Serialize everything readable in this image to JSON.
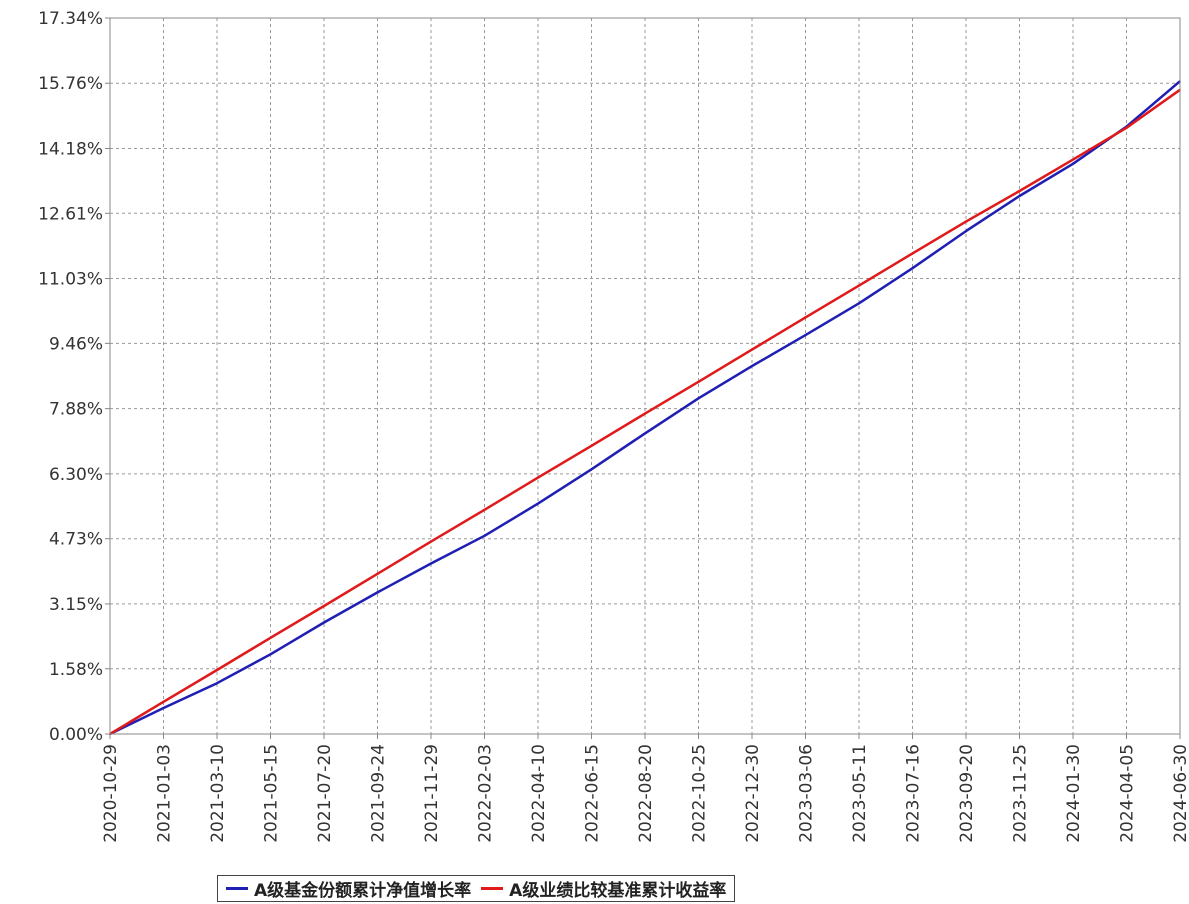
{
  "chart_data": {
    "type": "line",
    "title": "",
    "xlabel": "",
    "ylabel": "",
    "x": [
      "2020-10-29",
      "2021-01-03",
      "2021-03-10",
      "2021-05-15",
      "2021-07-20",
      "2021-09-24",
      "2021-11-29",
      "2022-02-03",
      "2022-04-10",
      "2022-06-15",
      "2022-08-20",
      "2022-10-25",
      "2022-12-30",
      "2023-03-06",
      "2023-05-11",
      "2023-07-16",
      "2023-09-20",
      "2023-11-25",
      "2024-01-30",
      "2024-04-05",
      "2024-06-30"
    ],
    "y_ticks": [
      "0.00%",
      "1.58%",
      "3.15%",
      "4.73%",
      "6.30%",
      "7.88%",
      "9.46%",
      "11.03%",
      "12.61%",
      "14.18%",
      "15.76%",
      "17.34%"
    ],
    "ylim": [
      0,
      17.34
    ],
    "grid": true,
    "legend_position": "bottom",
    "series": [
      {
        "name": "A级基金份额累计净值增长率",
        "color": "#1f1fb4",
        "values": [
          0.0,
          0.63,
          1.23,
          1.93,
          2.7,
          3.43,
          4.13,
          4.8,
          5.58,
          6.41,
          7.28,
          8.13,
          8.91,
          9.66,
          10.43,
          11.28,
          12.18,
          13.03,
          13.81,
          14.71,
          15.81
        ]
      },
      {
        "name": "A级业绩比较基准累计收益率",
        "color": "#e0191a",
        "values": [
          0.0,
          0.78,
          1.55,
          2.33,
          3.1,
          3.88,
          4.66,
          5.43,
          6.21,
          6.98,
          7.76,
          8.53,
          9.31,
          10.09,
          10.86,
          11.64,
          12.41,
          13.15,
          13.91,
          14.68,
          15.6
        ]
      }
    ]
  }
}
